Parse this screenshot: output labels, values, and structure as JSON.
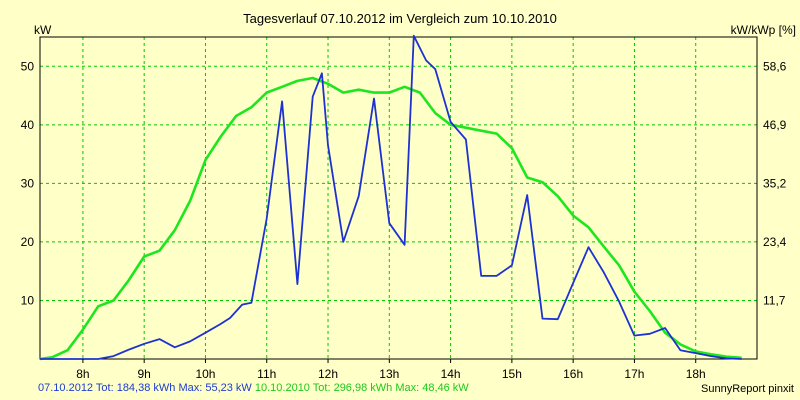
{
  "chart_data": {
    "type": "line",
    "title": "Tagesverlauf 07.10.2012 im Vergleich zum 10.10.2010",
    "ylabel_left": "kW",
    "ylabel_right": "kW/kWp [%]",
    "xlim": [
      7.3,
      19.0
    ],
    "ylim": [
      0,
      55
    ],
    "yticks": [
      10,
      20,
      30,
      40,
      50
    ],
    "right_ticks": [
      "11,7",
      "23,4",
      "35,2",
      "46,9",
      "58,6"
    ],
    "xticks": [
      8,
      9,
      10,
      11,
      12,
      13,
      14,
      15,
      16,
      17,
      18
    ],
    "xtick_labels": [
      "8h",
      "9h",
      "10h",
      "11h",
      "12h",
      "13h",
      "14h",
      "15h",
      "16h",
      "17h",
      "18h"
    ],
    "grid": true,
    "series": [
      {
        "name": "07.10.2012",
        "color": "#1e32d2",
        "x": [
          7.3,
          7.6,
          8.0,
          8.25,
          8.5,
          8.75,
          9.0,
          9.25,
          9.5,
          9.75,
          10.0,
          10.25,
          10.4,
          10.6,
          10.75,
          11.0,
          11.25,
          11.5,
          11.75,
          11.9,
          12.0,
          12.25,
          12.5,
          12.75,
          13.0,
          13.25,
          13.4,
          13.6,
          13.75,
          14.0,
          14.25,
          14.5,
          14.75,
          15.0,
          15.25,
          15.5,
          15.75,
          16.0,
          16.25,
          16.5,
          16.75,
          17.0,
          17.25,
          17.5,
          17.75,
          18.0,
          18.25,
          18.5,
          18.75
        ],
        "y": [
          0,
          0,
          0,
          0,
          0.5,
          1.6,
          2.6,
          3.4,
          2.0,
          3.0,
          4.5,
          6.0,
          7.0,
          9.3,
          9.6,
          24,
          44,
          12.8,
          44.8,
          48.8,
          36.5,
          20.0,
          27.8,
          44.5,
          23.2,
          19.5,
          55.2,
          51,
          49.5,
          40.5,
          37.5,
          14.2,
          14.2,
          16,
          28,
          6.9,
          6.8,
          13,
          19.1,
          14.8,
          9.8,
          4.0,
          4.3,
          5.3,
          1.5,
          1.0,
          0.5,
          0.1,
          0
        ]
      },
      {
        "name": "10.10.2010",
        "color": "#1ee61e",
        "x": [
          7.3,
          7.5,
          7.75,
          8.0,
          8.25,
          8.5,
          8.75,
          9.0,
          9.25,
          9.5,
          9.75,
          10.0,
          10.25,
          10.5,
          10.75,
          11.0,
          11.25,
          11.5,
          11.75,
          12.0,
          12.25,
          12.5,
          12.75,
          13.0,
          13.25,
          13.5,
          13.75,
          14.0,
          14.25,
          14.5,
          14.75,
          15.0,
          15.25,
          15.5,
          15.75,
          16.0,
          16.25,
          16.5,
          16.75,
          17.0,
          17.25,
          17.5,
          17.75,
          18.0,
          18.25,
          18.5,
          18.75
        ],
        "y": [
          0,
          0.3,
          1.5,
          5.0,
          9.0,
          10.0,
          13.5,
          17.5,
          18.5,
          22,
          27,
          34,
          38,
          41.5,
          43.0,
          45.5,
          46.5,
          47.5,
          48.0,
          47.0,
          45.5,
          46,
          45.5,
          45.5,
          46.5,
          45.5,
          42,
          40,
          39.5,
          39,
          38.5,
          36,
          31,
          30.2,
          27.8,
          24.5,
          22.5,
          19.2,
          16,
          11.5,
          8.2,
          4.5,
          2.5,
          1.3,
          0.8,
          0.4,
          0.2
        ]
      }
    ]
  },
  "footer": {
    "series1_summary": "07.10.2012 Tot: 184,38 kWh Max: 55,23 kW",
    "series2_summary": "10.10.2010 Tot: 296,98 kWh Max: 48,46 kW",
    "credit": "SunnyReport pinxit"
  },
  "colors": {
    "background": "#ffffc8",
    "grid": "#00c800",
    "axis": "#000000"
  }
}
